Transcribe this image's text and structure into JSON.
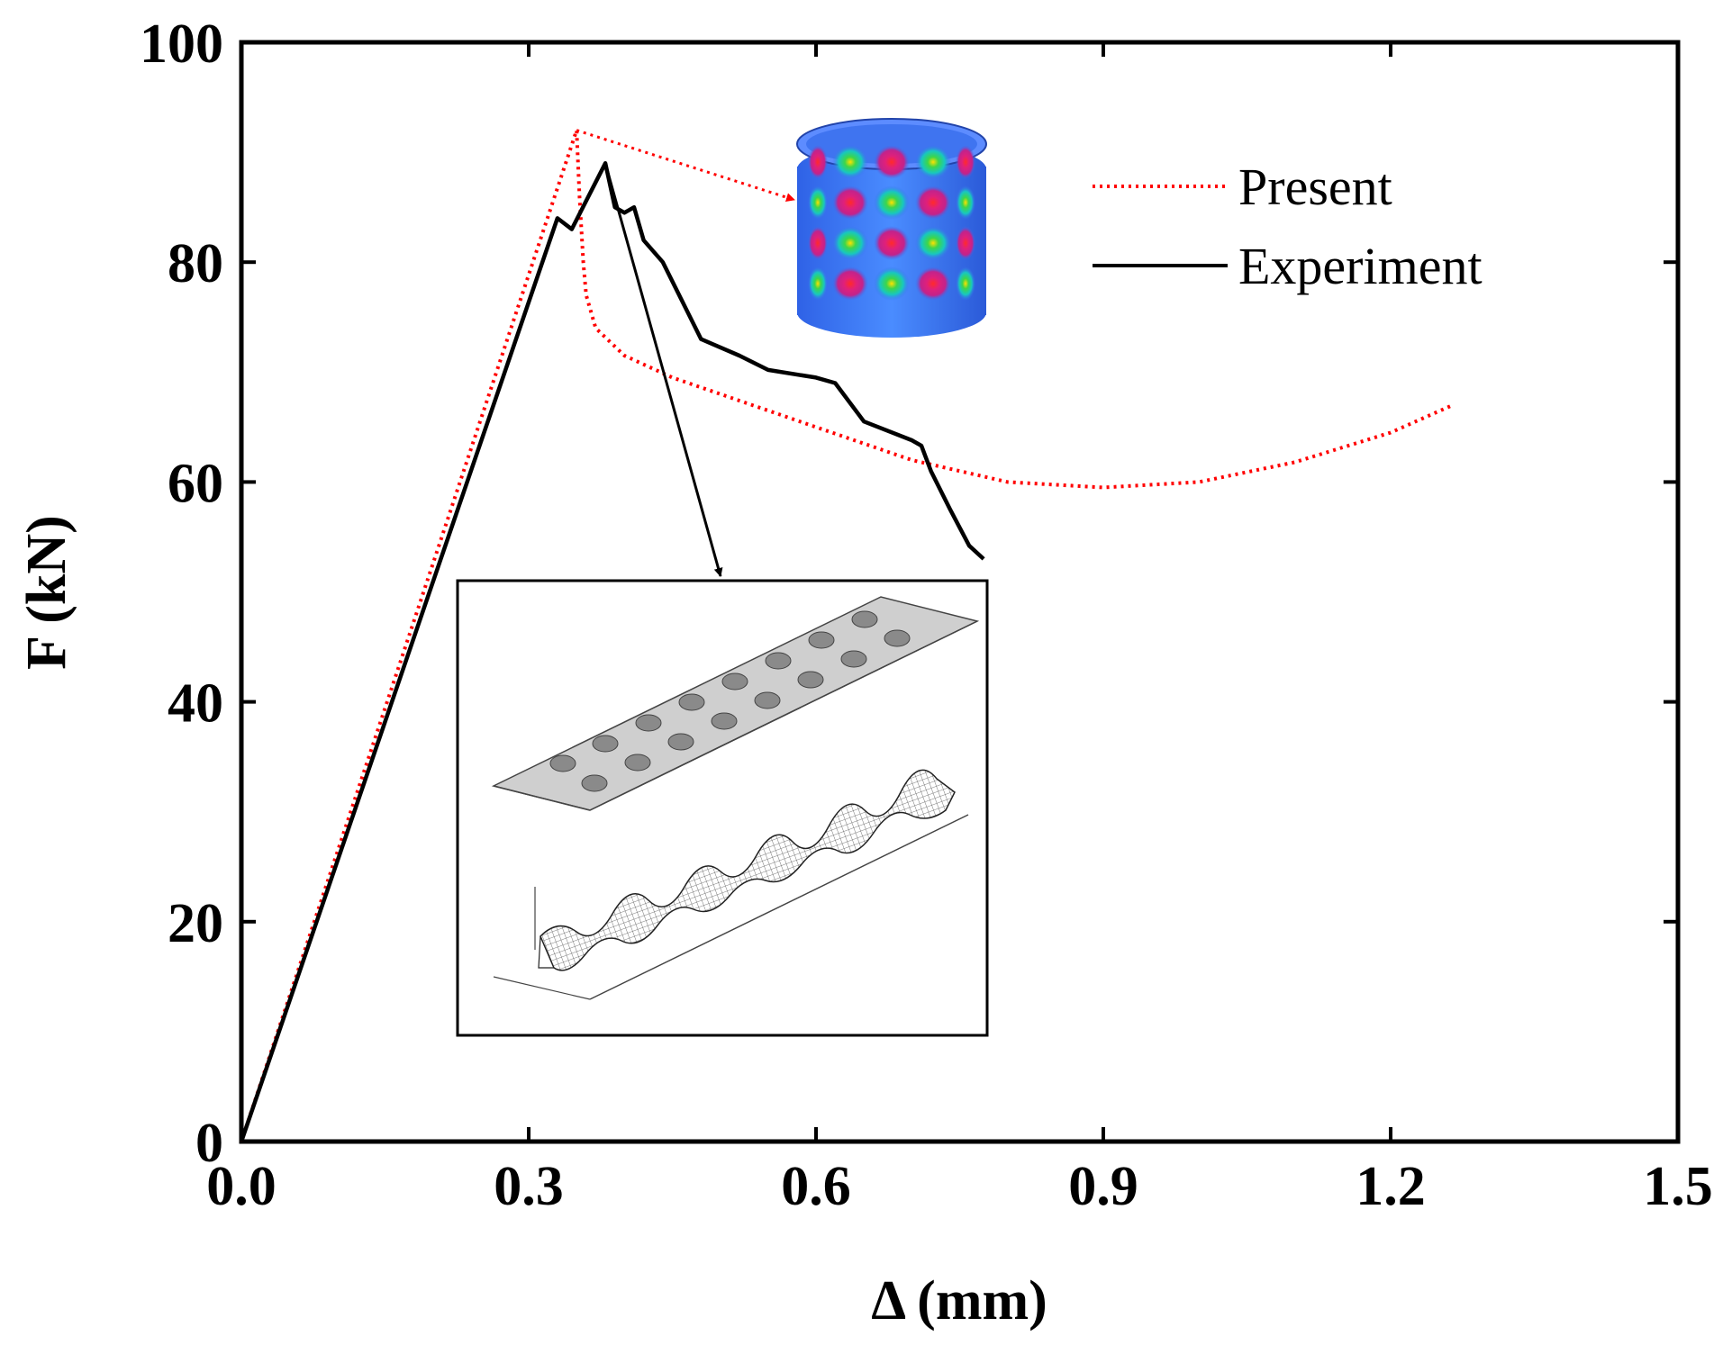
{
  "chart_data": {
    "type": "line",
    "title": "",
    "xlabel": "Δ (mm)",
    "ylabel": "F (kN)",
    "xlim": [
      0.0,
      1.5
    ],
    "ylim": [
      0,
      100
    ],
    "xticks": [
      "0.0",
      "0.3",
      "0.6",
      "0.9",
      "1.2",
      "1.5"
    ],
    "yticks": [
      "0",
      "20",
      "40",
      "60",
      "80",
      "100"
    ],
    "grid": false,
    "legend_position": "top-right",
    "series": [
      {
        "name": "Present",
        "color": "#ff0000",
        "style": "dotted",
        "x": [
          0.0,
          0.35,
          0.353,
          0.357,
          0.36,
          0.37,
          0.4,
          0.45,
          0.5,
          0.6,
          0.7,
          0.8,
          0.9,
          1.0,
          1.1,
          1.2,
          1.265
        ],
        "y": [
          0,
          92.0,
          86.0,
          80.0,
          77.0,
          74.0,
          71.5,
          69.5,
          68.0,
          65.0,
          62.0,
          60.0,
          59.5,
          60.0,
          61.8,
          64.5,
          67.0
        ]
      },
      {
        "name": "Experiment",
        "color": "#000000",
        "style": "solid",
        "x": [
          0.0,
          0.33,
          0.345,
          0.38,
          0.39,
          0.4,
          0.41,
          0.42,
          0.44,
          0.46,
          0.48,
          0.52,
          0.55,
          0.6,
          0.62,
          0.65,
          0.7,
          0.71,
          0.72,
          0.74,
          0.76,
          0.775
        ],
        "y": [
          0,
          84.0,
          83.0,
          89.0,
          85.0,
          84.5,
          85.0,
          82.0,
          80.0,
          76.5,
          73.0,
          71.5,
          70.2,
          69.5,
          69.0,
          65.5,
          63.8,
          63.3,
          61.0,
          57.5,
          54.2,
          53.0
        ]
      }
    ],
    "annotations": [
      {
        "kind": "arrow",
        "from_series": "Present",
        "from_x": 0.35,
        "from_y": 92.0,
        "to": "cylinder-mode-image",
        "color": "#ff0000"
      },
      {
        "kind": "arrow",
        "from_series": "Experiment",
        "from_x": 0.38,
        "from_y": 89.0,
        "to": "inset-surface-plot",
        "color": "#000000"
      }
    ]
  }
}
